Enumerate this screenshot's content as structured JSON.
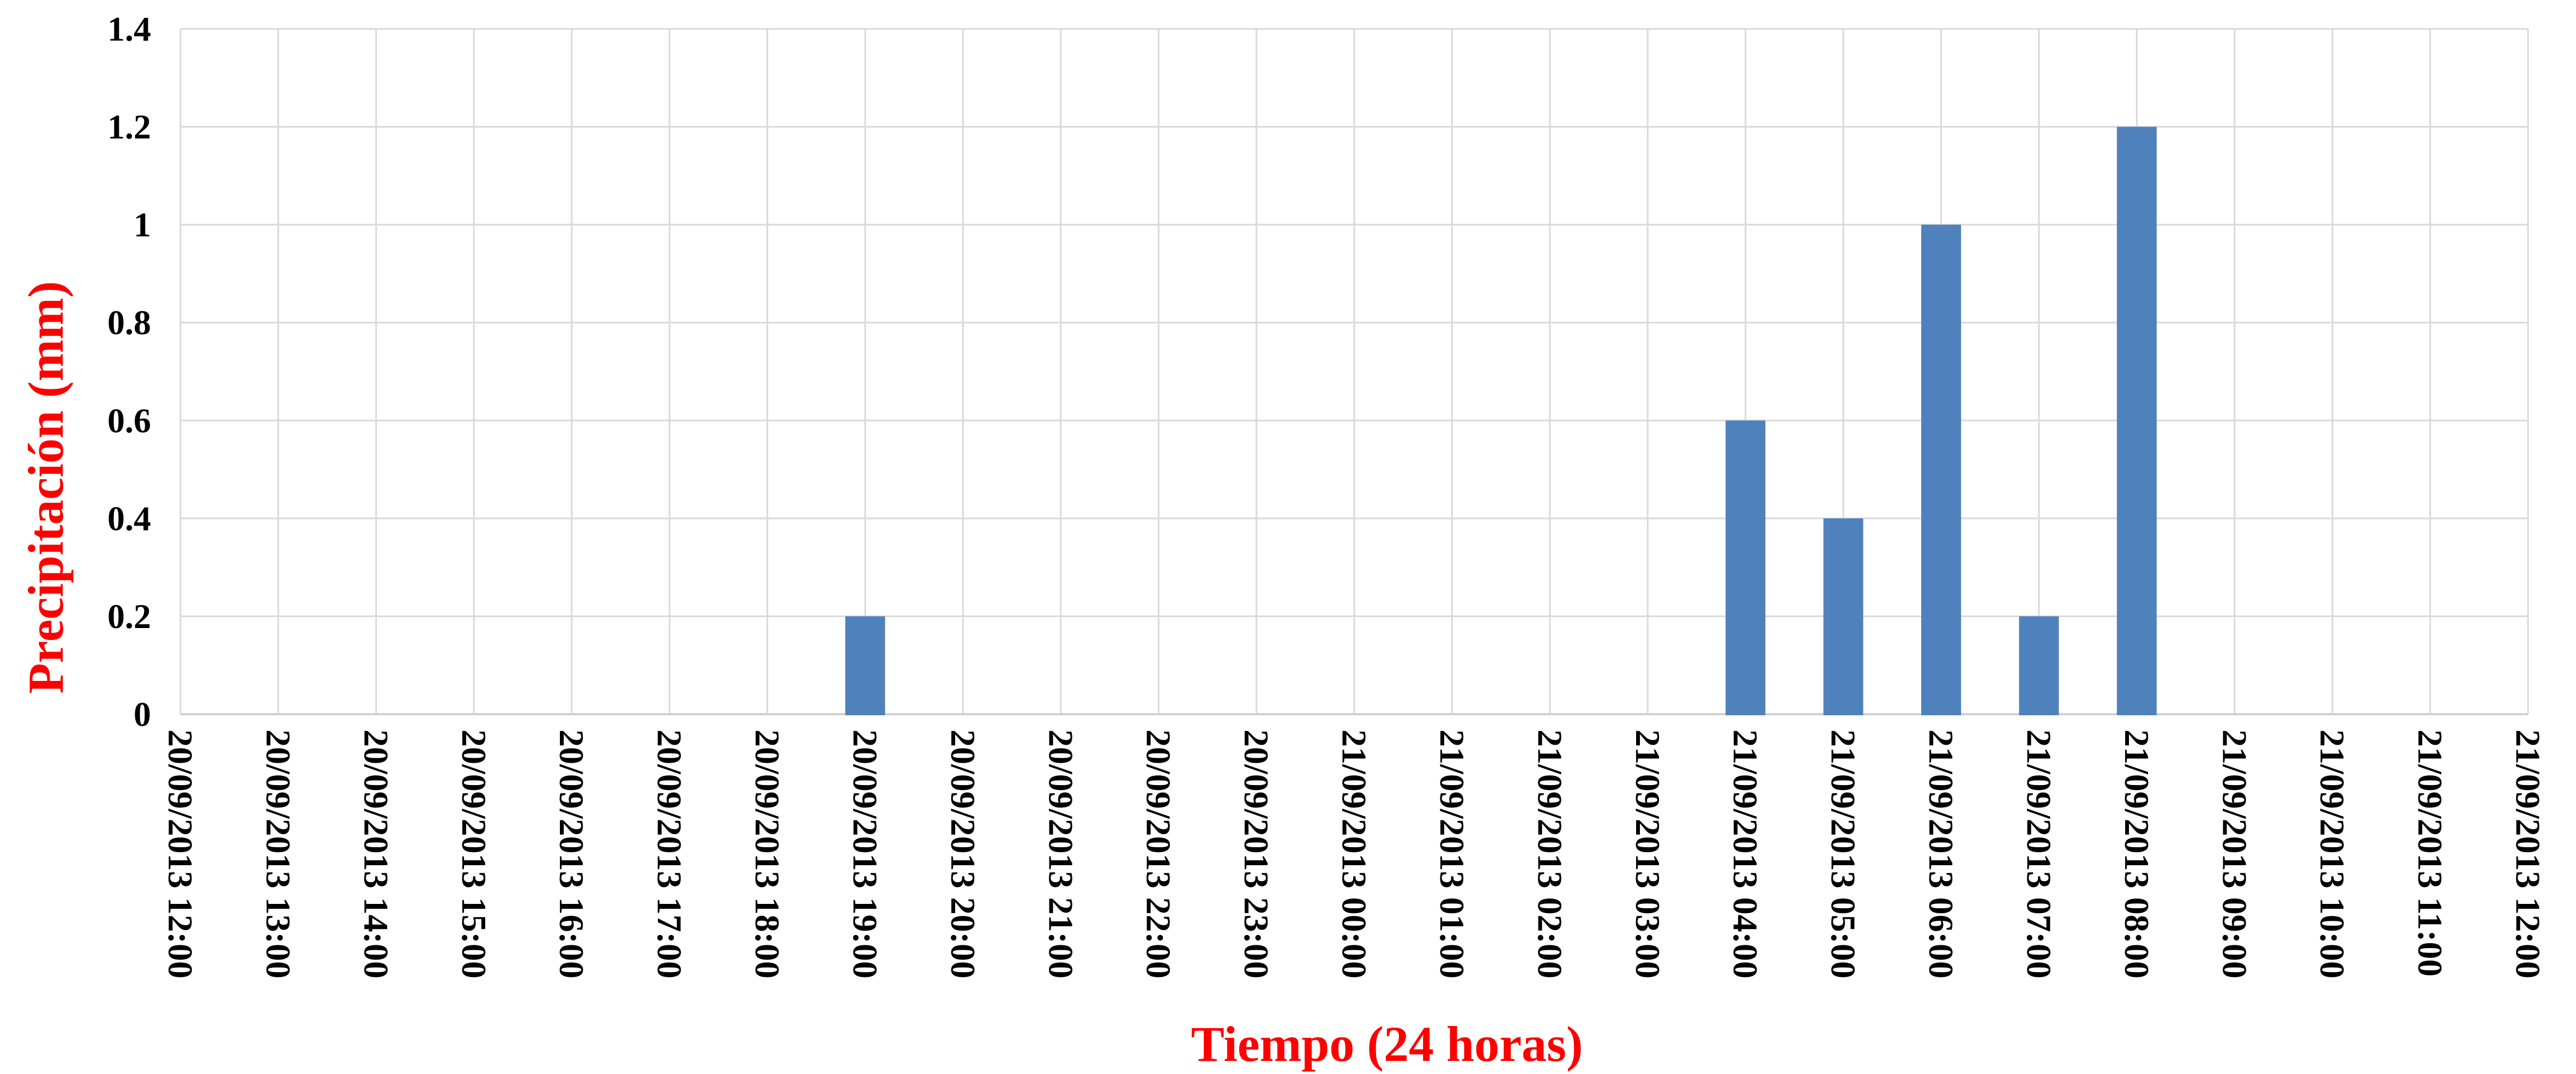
{
  "chart_data": {
    "type": "bar",
    "title": "",
    "xlabel": "Tiempo (24 horas)",
    "ylabel": "Precipitación (mm)",
    "categories": [
      "20/09/2013 12:00",
      "20/09/2013 13:00",
      "20/09/2013 14:00",
      "20/09/2013 15:00",
      "20/09/2013 16:00",
      "20/09/2013 17:00",
      "20/09/2013 18:00",
      "20/09/2013 19:00",
      "20/09/2013 20:00",
      "20/09/2013 21:00",
      "20/09/2013 22:00",
      "20/09/2013 23:00",
      "21/09/2013 00:00",
      "21/09/2013 01:00",
      "21/09/2013 02:00",
      "21/09/2013 03:00",
      "21/09/2013 04:00",
      "21/09/2013 05:00",
      "21/09/2013 06:00",
      "21/09/2013 07:00",
      "21/09/2013 08:00",
      "21/09/2013 09:00",
      "21/09/2013 10:00",
      "21/09/2013 11:00",
      "21/09/2013 12:00"
    ],
    "values": [
      0,
      0,
      0,
      0,
      0,
      0,
      0,
      0.2,
      0,
      0,
      0,
      0,
      0,
      0,
      0,
      0,
      0.6,
      0.4,
      1,
      0.2,
      1.2,
      0,
      0,
      0,
      0
    ],
    "yticks": [
      "0",
      "0.2",
      "0.4",
      "0.6",
      "0.8",
      "1",
      "1.2",
      "1.4"
    ],
    "ytick_values": [
      0,
      0.2,
      0.4,
      0.6,
      0.8,
      1,
      1.2,
      1.4
    ],
    "ylim": [
      0,
      1.4
    ],
    "bar_color": "#4F81BD",
    "gridline_color": "#D9D9D9",
    "axis_line_color": "#D0D0D0",
    "axis_title_color": "#FF0000",
    "tick_label_color": "#000000",
    "grid": "horizontal and vertical gridlines, on",
    "legend": "none",
    "x_label_rotation_deg": 90
  }
}
